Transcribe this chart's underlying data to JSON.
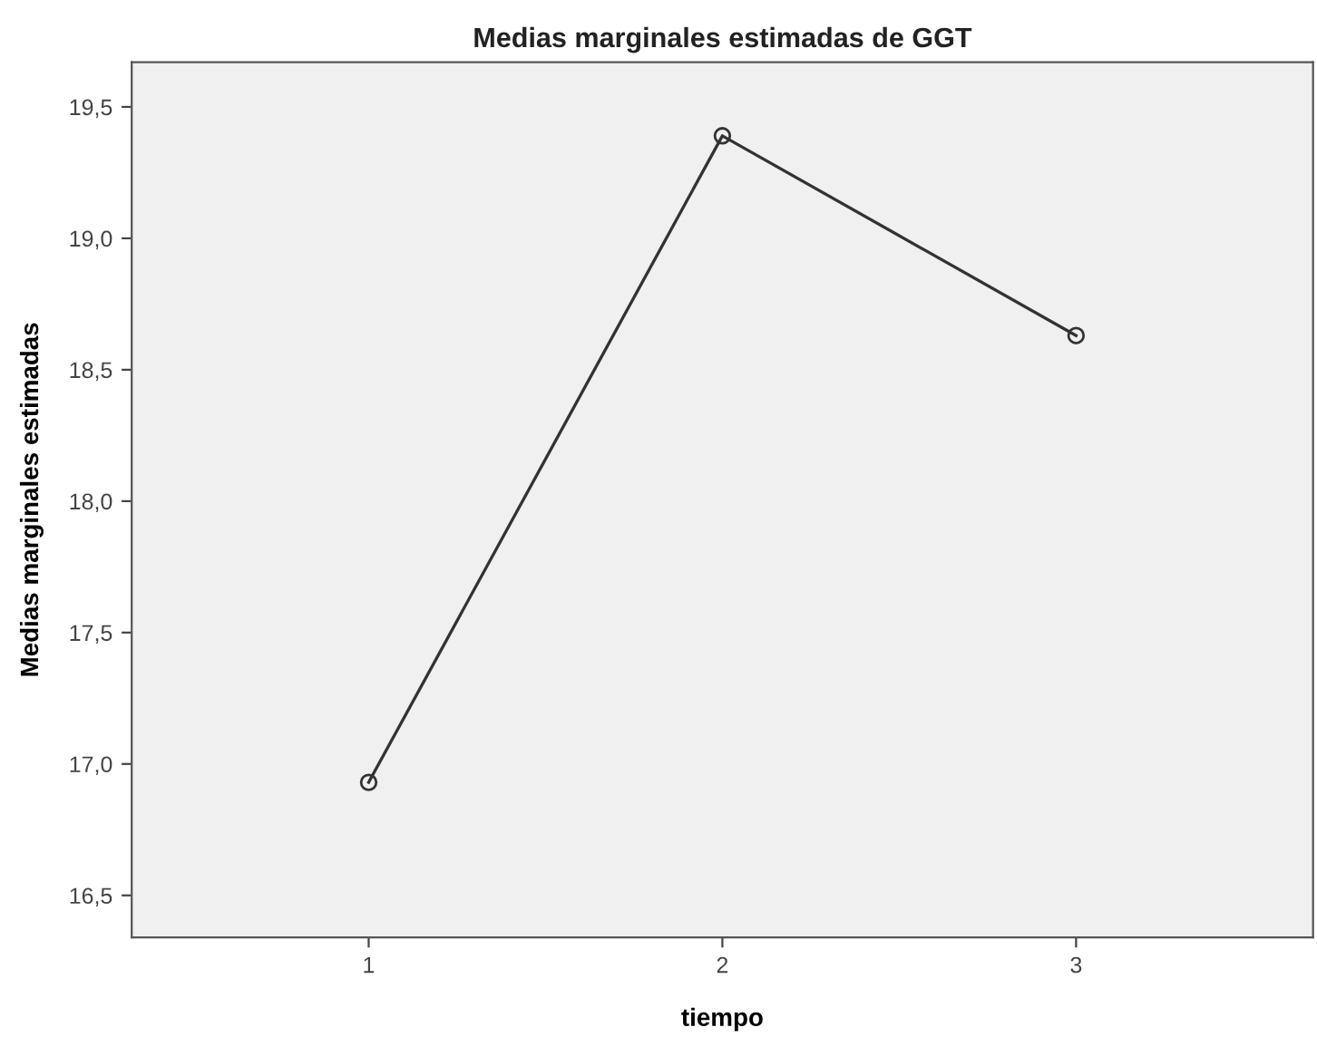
{
  "chart_data": {
    "type": "line",
    "title": "Medias marginales estimadas de GGT",
    "xlabel": "tiempo",
    "ylabel": "Medias marginales estimadas",
    "categories": [
      "1",
      "2",
      "3"
    ],
    "series": [
      {
        "color": "#333333",
        "values": [
          16.93,
          19.39,
          18.63
        ]
      }
    ],
    "ylim": [
      16.34,
      19.67
    ],
    "yticks": [
      {
        "value": 16.5,
        "label": "16,5"
      },
      {
        "value": 17.0,
        "label": "17,0"
      },
      {
        "value": 17.5,
        "label": "17,5"
      },
      {
        "value": 18.0,
        "label": "18,0"
      },
      {
        "value": 18.5,
        "label": "18,5"
      },
      {
        "value": 19.0,
        "label": "19,0"
      },
      {
        "value": 19.5,
        "label": "19,5"
      }
    ],
    "grid": false,
    "legend": false,
    "marker": "circle",
    "line_style": "solid"
  }
}
